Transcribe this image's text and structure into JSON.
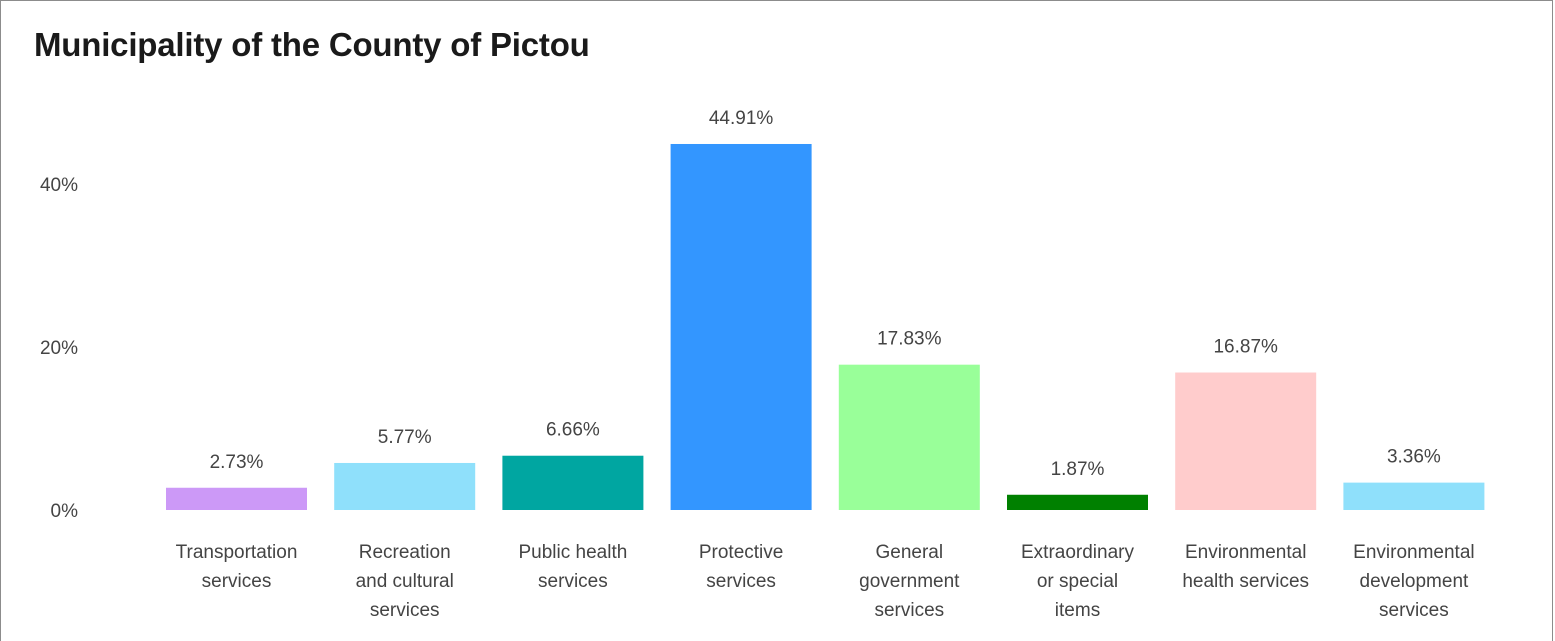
{
  "chart_data": {
    "type": "bar",
    "title": "Municipality of the County of Pictou",
    "xlabel": "",
    "ylabel": "",
    "ylim": [
      0,
      48
    ],
    "yticks": [
      0,
      20,
      40
    ],
    "ytick_labels": [
      "0%",
      "20%",
      "40%"
    ],
    "grid": false,
    "categories": [
      [
        "Transportation",
        "services"
      ],
      [
        "Recreation",
        "and cultural",
        "services"
      ],
      [
        "Public health",
        "services"
      ],
      [
        "Protective",
        "services"
      ],
      [
        "General",
        "government",
        "services"
      ],
      [
        "Extraordinary",
        "or special",
        "items"
      ],
      [
        "Environmental",
        "health services"
      ],
      [
        "Environmental",
        "development",
        "services"
      ]
    ],
    "values": [
      2.73,
      5.77,
      6.66,
      44.91,
      17.83,
      1.87,
      16.87,
      3.36
    ],
    "data_labels": [
      "2.73%",
      "5.77%",
      "6.66%",
      "44.91%",
      "17.83%",
      "1.87%",
      "16.87%",
      "3.36%"
    ],
    "colors": [
      "#cc99f7",
      "#8fe0fb",
      "#00a6a1",
      "#3396ff",
      "#99ff99",
      "#008000",
      "#ffcccc",
      "#8fe0fb"
    ]
  }
}
